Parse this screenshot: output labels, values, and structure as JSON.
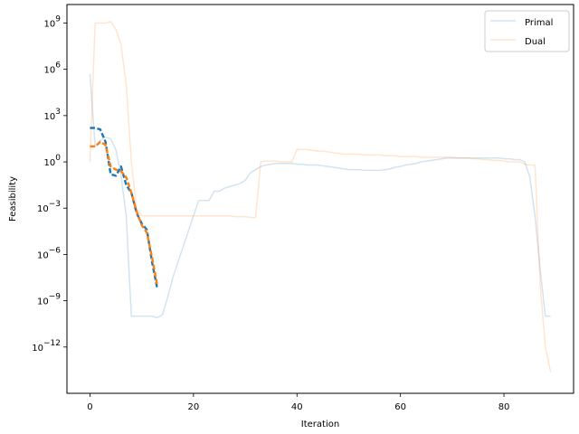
{
  "chart_data": {
    "type": "line",
    "title": "",
    "xlabel": "Iteration",
    "ylabel": "Feasibility",
    "yscale": "log",
    "xlim": [
      -4.45,
      93.45
    ],
    "ylim_log10": [
      -15,
      10.2
    ],
    "x_ticks": [
      0,
      20,
      40,
      60,
      80
    ],
    "x_tick_labels": [
      "0",
      "20",
      "40",
      "60",
      "80"
    ],
    "y_ticks_log10": [
      9,
      6,
      3,
      0,
      -3,
      -6,
      -9,
      -12
    ],
    "y_tick_labels": [
      "10",
      "10",
      "10",
      "10",
      "10",
      "10",
      "10",
      "10"
    ],
    "y_tick_exponents": [
      "9",
      "6",
      "3",
      "0",
      "−3",
      "−6",
      "−9",
      "−12"
    ],
    "legend": {
      "position": "upper right",
      "entries": [
        "Primal",
        "Dual"
      ]
    },
    "colors": {
      "primal": "#1f77b4",
      "dual": "#ff7f0e"
    },
    "series": [
      {
        "name": "Primal",
        "style": "solid-faint",
        "color": "#1f77b4",
        "x": [
          0,
          1,
          2,
          3,
          4,
          5,
          6,
          7,
          8,
          9,
          10,
          11,
          12,
          13,
          14,
          15,
          16,
          17,
          18,
          19,
          20,
          21,
          22,
          23,
          24,
          25,
          26,
          27,
          28,
          29,
          30,
          31,
          32,
          33,
          34,
          35,
          36,
          37,
          38,
          39,
          40,
          41,
          42,
          43,
          44,
          45,
          46,
          47,
          48,
          49,
          50,
          51,
          52,
          53,
          54,
          55,
          56,
          57,
          58,
          59,
          60,
          61,
          62,
          63,
          64,
          65,
          66,
          67,
          68,
          69,
          70,
          71,
          72,
          73,
          74,
          75,
          76,
          77,
          78,
          79,
          80,
          81,
          82,
          83,
          84,
          85,
          86,
          87,
          88,
          89
        ],
        "y_log10": [
          5.7,
          1.0,
          1.4,
          1.6,
          1.5,
          0.8,
          -0.9,
          -3.5,
          -10.0,
          -10.0,
          -10.0,
          -10.0,
          -10.0,
          -10.1,
          -9.9,
          -8.8,
          -7.5,
          -6.5,
          -5.5,
          -4.5,
          -3.5,
          -2.5,
          -2.5,
          -2.5,
          -1.9,
          -1.9,
          -1.7,
          -1.6,
          -1.5,
          -1.4,
          -1.2,
          -0.7,
          -0.5,
          -0.3,
          -0.2,
          -0.15,
          -0.1,
          -0.1,
          -0.1,
          -0.1,
          -0.15,
          -0.15,
          -0.2,
          -0.2,
          -0.2,
          -0.25,
          -0.3,
          -0.35,
          -0.4,
          -0.45,
          -0.5,
          -0.5,
          -0.5,
          -0.55,
          -0.55,
          -0.55,
          -0.55,
          -0.5,
          -0.45,
          -0.35,
          -0.3,
          -0.2,
          -0.15,
          -0.1,
          0.0,
          0.05,
          0.1,
          0.15,
          0.2,
          0.25,
          0.25,
          0.25,
          0.25,
          0.25,
          0.25,
          0.25,
          0.25,
          0.25,
          0.25,
          0.25,
          0.2,
          0.2,
          0.15,
          0.15,
          0.0,
          -1.0,
          -3.5,
          -7.0,
          -10.0,
          -10.0
        ]
      },
      {
        "name": "Dual",
        "style": "solid-faint",
        "color": "#ff7f0e",
        "x": [
          0,
          1,
          2,
          3,
          4,
          5,
          6,
          7,
          8,
          9,
          10,
          11,
          12,
          13,
          14,
          15,
          16,
          17,
          18,
          19,
          20,
          21,
          22,
          23,
          24,
          25,
          26,
          27,
          28,
          29,
          30,
          31,
          32,
          33,
          34,
          35,
          36,
          37,
          38,
          39,
          40,
          41,
          42,
          43,
          44,
          45,
          46,
          47,
          48,
          49,
          50,
          51,
          52,
          53,
          54,
          55,
          56,
          57,
          58,
          59,
          60,
          61,
          62,
          63,
          64,
          65,
          66,
          67,
          68,
          69,
          70,
          71,
          72,
          73,
          74,
          75,
          76,
          77,
          78,
          79,
          80,
          81,
          82,
          83,
          84,
          85,
          86,
          87,
          88,
          89
        ],
        "y_log10": [
          0.0,
          9.0,
          9.0,
          9.0,
          9.1,
          8.6,
          7.6,
          5.0,
          0.0,
          -3.0,
          -3.5,
          -3.5,
          -3.5,
          -3.5,
          -3.5,
          -3.5,
          -3.5,
          -3.5,
          -3.5,
          -3.5,
          -3.5,
          -3.5,
          -3.5,
          -3.5,
          -3.5,
          -3.5,
          -3.5,
          -3.5,
          -3.55,
          -3.55,
          -3.55,
          -3.6,
          -3.6,
          0.0,
          0.05,
          0.05,
          0.05,
          0.0,
          0.0,
          0.0,
          0.8,
          0.8,
          0.8,
          0.75,
          0.7,
          0.7,
          0.65,
          0.6,
          0.55,
          0.5,
          0.5,
          0.5,
          0.5,
          0.45,
          0.45,
          0.45,
          0.45,
          0.4,
          0.4,
          0.4,
          0.35,
          0.35,
          0.35,
          0.35,
          0.3,
          0.3,
          0.3,
          0.3,
          0.3,
          0.3,
          0.3,
          0.25,
          0.25,
          0.25,
          0.2,
          0.2,
          0.15,
          0.15,
          0.1,
          0.1,
          0.05,
          0.0,
          0.0,
          0.0,
          -0.15,
          -0.2,
          -0.2,
          -8.0,
          -12.0,
          -13.6
        ]
      },
      {
        "name": "",
        "style": "dashed-bold",
        "color": "#1f77b4",
        "x": [
          0,
          1,
          2,
          3,
          4,
          5,
          6,
          7,
          8,
          9,
          10,
          11,
          12,
          13
        ],
        "y_log10": [
          2.2,
          2.2,
          2.1,
          1.3,
          -0.8,
          -0.9,
          -0.3,
          -1.5,
          -2.0,
          -3.3,
          -4.0,
          -4.4,
          -6.5,
          -8.2
        ]
      },
      {
        "name": "",
        "style": "dashed-bold",
        "color": "#ff7f0e",
        "x": [
          0,
          1,
          2,
          3,
          4,
          5,
          6,
          7,
          8,
          9,
          10,
          11,
          12,
          13
        ],
        "y_log10": [
          1.0,
          1.0,
          1.3,
          1.1,
          -0.3,
          -0.5,
          -0.6,
          -1.0,
          -2.0,
          -3.2,
          -4.1,
          -4.6,
          -6.2,
          -8.0
        ]
      }
    ]
  }
}
